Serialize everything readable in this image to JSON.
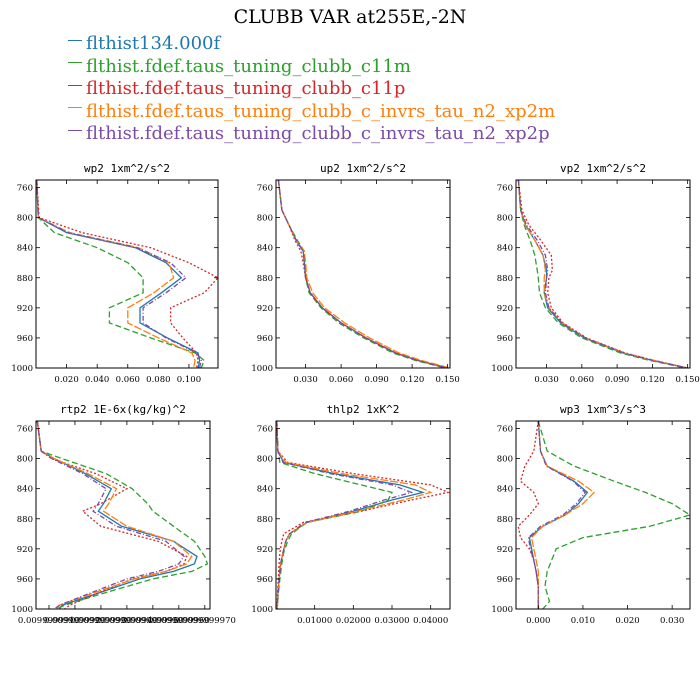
{
  "title": "CLUBB VAR at255E,-2N",
  "legend": [
    {
      "name": "flthist134.000f",
      "color": "#1f77b4"
    },
    {
      "name": "flthist.fdef.taus_tuning_clubb_c11m",
      "color": "#2ca02c"
    },
    {
      "name": "flthist.fdef.taus_tuning_clubb_c11p",
      "color": "#d62728"
    },
    {
      "name": "flthist.fdef.taus_tuning_clubb_c_invrs_tau_n2_xp2m",
      "color": "#ff7f0e"
    },
    {
      "name": "flthist.fdef.taus_tuning_clubb_c_invrs_tau_n2_xp2p",
      "color": "#7b4ba8"
    }
  ],
  "chart_data": [
    {
      "type": "line",
      "title": "wp2  1xm^2/s^2",
      "xlim": [
        0,
        0.119
      ],
      "ylim": [
        1000,
        750
      ],
      "xticks": [
        0.02,
        0.04,
        0.06,
        0.08,
        0.1
      ],
      "xtick_labels": [
        "0.020",
        "0.040",
        "0.060",
        "0.080",
        "0.100"
      ],
      "yticks": [
        760,
        800,
        840,
        880,
        920,
        960,
        1000
      ],
      "levels": [
        750,
        800,
        820,
        840,
        860,
        880,
        900,
        920,
        940,
        960,
        980,
        990,
        1000
      ],
      "series": [
        {
          "color": "#1f77b4",
          "values": [
            0.0005,
            0.0015,
            0.02,
            0.065,
            0.085,
            0.095,
            0.082,
            0.068,
            0.068,
            0.086,
            0.106,
            0.107,
            0.106
          ]
        },
        {
          "color": "#2ca02c",
          "values": [
            0.0005,
            0.0015,
            0.012,
            0.04,
            0.06,
            0.07,
            0.07,
            0.048,
            0.048,
            0.075,
            0.104,
            0.11,
            0.108
          ]
        },
        {
          "color": "#d62728",
          "values": [
            0.0005,
            0.002,
            0.03,
            0.075,
            0.1,
            0.119,
            0.11,
            0.088,
            0.088,
            0.096,
            0.105,
            0.106,
            0.105
          ]
        },
        {
          "color": "#ff7f0e",
          "values": [
            0.0005,
            0.0015,
            0.022,
            0.067,
            0.087,
            0.09,
            0.077,
            0.06,
            0.06,
            0.08,
            0.102,
            0.104,
            0.103
          ]
        },
        {
          "color": "#7b4ba8",
          "values": [
            0.0005,
            0.0015,
            0.021,
            0.066,
            0.088,
            0.098,
            0.085,
            0.07,
            0.07,
            0.085,
            0.105,
            0.108,
            0.107
          ]
        }
      ]
    },
    {
      "type": "line",
      "title": "up2  1xm^2/s^2",
      "xlim": [
        0.005,
        0.152
      ],
      "ylim": [
        1000,
        750
      ],
      "xticks": [
        0.03,
        0.06,
        0.09,
        0.12,
        0.15
      ],
      "xtick_labels": [
        "0.030",
        "0.060",
        "0.090",
        "0.120",
        "0.150"
      ],
      "yticks": [
        760,
        800,
        840,
        880,
        920,
        960,
        1000
      ],
      "levels": [
        750,
        790,
        810,
        830,
        845,
        860,
        880,
        900,
        920,
        940,
        960,
        980,
        990,
        1000
      ],
      "series": [
        {
          "color": "#1f77b4",
          "values": [
            0.007,
            0.01,
            0.016,
            0.022,
            0.028,
            0.029,
            0.03,
            0.034,
            0.044,
            0.06,
            0.081,
            0.106,
            0.125,
            0.15
          ]
        },
        {
          "color": "#2ca02c",
          "values": [
            0.007,
            0.01,
            0.016,
            0.023,
            0.029,
            0.029,
            0.03,
            0.033,
            0.043,
            0.058,
            0.079,
            0.104,
            0.123,
            0.148
          ]
        },
        {
          "color": "#d62728",
          "values": [
            0.007,
            0.01,
            0.016,
            0.021,
            0.026,
            0.028,
            0.03,
            0.034,
            0.044,
            0.06,
            0.081,
            0.106,
            0.125,
            0.15
          ]
        },
        {
          "color": "#ff7f0e",
          "values": [
            0.007,
            0.01,
            0.016,
            0.022,
            0.029,
            0.03,
            0.031,
            0.036,
            0.046,
            0.063,
            0.084,
            0.109,
            0.128,
            0.152
          ]
        },
        {
          "color": "#7b4ba8",
          "values": [
            0.007,
            0.01,
            0.016,
            0.022,
            0.028,
            0.029,
            0.03,
            0.034,
            0.044,
            0.06,
            0.081,
            0.106,
            0.125,
            0.15
          ]
        }
      ]
    },
    {
      "type": "line",
      "title": "vp2  1xm^2/s^2",
      "xlim": [
        0.004,
        0.152
      ],
      "ylim": [
        1000,
        750
      ],
      "xticks": [
        0.03,
        0.06,
        0.09,
        0.12,
        0.15
      ],
      "xtick_labels": [
        "0.030",
        "0.060",
        "0.090",
        "0.120",
        "0.150"
      ],
      "yticks": [
        760,
        800,
        840,
        880,
        920,
        960,
        1000
      ],
      "levels": [
        750,
        790,
        810,
        830,
        850,
        870,
        880,
        900,
        920,
        940,
        960,
        980,
        990,
        1000
      ],
      "series": [
        {
          "color": "#1f77b4",
          "values": [
            0.006,
            0.008,
            0.012,
            0.02,
            0.027,
            0.03,
            0.03,
            0.028,
            0.031,
            0.042,
            0.062,
            0.095,
            0.12,
            0.15
          ]
        },
        {
          "color": "#2ca02c",
          "values": [
            0.006,
            0.008,
            0.011,
            0.016,
            0.02,
            0.022,
            0.023,
            0.024,
            0.029,
            0.04,
            0.06,
            0.093,
            0.118,
            0.148
          ]
        },
        {
          "color": "#d62728",
          "values": [
            0.006,
            0.009,
            0.015,
            0.025,
            0.034,
            0.035,
            0.032,
            0.031,
            0.034,
            0.044,
            0.064,
            0.097,
            0.122,
            0.15
          ]
        },
        {
          "color": "#ff7f0e",
          "values": [
            0.006,
            0.008,
            0.012,
            0.02,
            0.027,
            0.029,
            0.028,
            0.028,
            0.032,
            0.043,
            0.063,
            0.096,
            0.121,
            0.15
          ]
        },
        {
          "color": "#7b4ba8",
          "values": [
            0.006,
            0.008,
            0.013,
            0.022,
            0.029,
            0.031,
            0.03,
            0.029,
            0.032,
            0.043,
            0.063,
            0.096,
            0.121,
            0.15
          ]
        }
      ]
    },
    {
      "type": "line",
      "title": "rtp2  1E-6x(kg/kg)^2",
      "xlim": [
        0.0099999905,
        0.0099999972
      ],
      "ylim": [
        1000,
        750
      ],
      "xticks": [
        0.009999991,
        0.009999992,
        0.009999993,
        0.009999994,
        0.009999995,
        0.009999996,
        0.009999997
      ],
      "xtick_labels": [
        "0.0099999910",
        "0.0099999920",
        "0.0099999930",
        "0.0099999940",
        "0.0099999950",
        "0.0099999960",
        "0.0099999970"
      ],
      "yticks": [
        760,
        800,
        840,
        880,
        920,
        960,
        1000
      ],
      "levels": [
        750,
        790,
        800,
        820,
        840,
        860,
        870,
        890,
        910,
        930,
        940,
        950,
        960,
        980,
        995,
        1000
      ],
      "series": [
        {
          "color": "#1f77b4",
          "values": [
            0.00999999055,
            0.0099999907,
            0.0099999912,
            0.0099999924,
            0.0099999934,
            0.0099999931,
            0.0099999929,
            0.0099999938,
            0.0099999958,
            0.0099999967,
            0.0099999966,
            0.0099999958,
            0.0099999945,
            0.0099999928,
            0.0099999915,
            0.0099999914
          ]
        },
        {
          "color": "#2ca02c",
          "values": [
            0.00999999055,
            0.0099999907,
            0.0099999915,
            0.0099999932,
            0.0099999942,
            0.0099999948,
            0.009999995,
            0.0099999958,
            0.0099999966,
            0.009999997,
            0.0099999971,
            0.0099999965,
            0.009999995,
            0.009999993,
            0.0099999916,
            0.0099999913
          ]
        },
        {
          "color": "#d62728",
          "values": [
            0.00999999055,
            0.0099999907,
            0.0099999911,
            0.0099999928,
            0.009999994,
            0.009999993,
            0.0099999923,
            0.009999993,
            0.0099999952,
            0.0099999963,
            0.0099999962,
            0.0099999955,
            0.0099999942,
            0.0099999928,
            0.0099999918,
            0.0099999916
          ]
        },
        {
          "color": "#ff7f0e",
          "values": [
            0.00999999055,
            0.0099999907,
            0.0099999912,
            0.0099999925,
            0.0099999936,
            0.0099999933,
            0.0099999931,
            0.009999994,
            0.0099999958,
            0.0099999965,
            0.0099999963,
            0.0099999955,
            0.0099999943,
            0.0099999926,
            0.0099999914,
            0.0099999913
          ]
        },
        {
          "color": "#7b4ba8",
          "values": [
            0.00999999055,
            0.0099999907,
            0.0099999911,
            0.0099999923,
            0.0099999932,
            0.0099999929,
            0.0099999927,
            0.0099999936,
            0.0099999955,
            0.0099999962,
            0.009999996,
            0.0099999952,
            0.009999994,
            0.0099999925,
            0.0099999914,
            0.0099999912
          ]
        }
      ]
    },
    {
      "type": "line",
      "title": "thlp2  1xK^2",
      "xlim": [
        0,
        0.045
      ],
      "ylim": [
        1000,
        750
      ],
      "xticks": [
        0.01,
        0.02,
        0.03,
        0.04
      ],
      "xtick_labels": [
        "0.01000",
        "0.02000",
        "0.03000",
        "0.04000"
      ],
      "yticks": [
        760,
        800,
        840,
        880,
        920,
        960,
        1000
      ],
      "levels": [
        750,
        790,
        805,
        820,
        835,
        845,
        855,
        870,
        885,
        900,
        910,
        925,
        940,
        960,
        980,
        1000
      ],
      "series": [
        {
          "color": "#1f77b4",
          "values": [
            0.0002,
            0.0005,
            0.002,
            0.015,
            0.032,
            0.038,
            0.03,
            0.02,
            0.008,
            0.0035,
            0.0025,
            0.0018,
            0.0012,
            0.0008,
            0.0005,
            0.0003
          ]
        },
        {
          "color": "#2ca02c",
          "values": [
            0.0002,
            0.0005,
            0.001,
            0.01,
            0.022,
            0.03,
            0.029,
            0.022,
            0.008,
            0.004,
            0.003,
            0.002,
            0.0015,
            0.001,
            0.0006,
            0.0003
          ]
        },
        {
          "color": "#d62728",
          "values": [
            0.0002,
            0.0005,
            0.003,
            0.02,
            0.04,
            0.0445,
            0.035,
            0.022,
            0.007,
            0.002,
            0.0015,
            0.001,
            0.0008,
            0.0006,
            0.0004,
            0.0003
          ]
        },
        {
          "color": "#ff7f0e",
          "values": [
            0.0002,
            0.0005,
            0.0025,
            0.017,
            0.036,
            0.04,
            0.033,
            0.021,
            0.008,
            0.0035,
            0.0025,
            0.0018,
            0.0012,
            0.0008,
            0.0005,
            0.0003
          ]
        },
        {
          "color": "#7b4ba8",
          "values": [
            0.0002,
            0.0005,
            0.0018,
            0.014,
            0.03,
            0.035,
            0.028,
            0.019,
            0.0075,
            0.0035,
            0.0025,
            0.0018,
            0.0012,
            0.0008,
            0.0005,
            0.0003
          ]
        }
      ]
    },
    {
      "type": "line",
      "title": "wp3  1xm^3/s^3",
      "xlim": [
        -0.005,
        0.034
      ],
      "ylim": [
        1000,
        750
      ],
      "xticks": [
        0.0,
        0.01,
        0.02,
        0.03
      ],
      "xtick_labels": [
        "0.000",
        "0.010",
        "0.020",
        "0.030"
      ],
      "yticks": [
        760,
        800,
        840,
        880,
        920,
        960,
        1000
      ],
      "levels": [
        750,
        790,
        810,
        830,
        845,
        860,
        875,
        890,
        905,
        920,
        935,
        950,
        970,
        990,
        1000
      ],
      "series": [
        {
          "color": "#1f77b4",
          "values": [
            0.0,
            0.0005,
            0.002,
            0.008,
            0.011,
            0.009,
            0.006,
            0.001,
            -0.002,
            -0.0015,
            -0.001,
            -0.0005,
            0.0,
            0.0,
            0.0
          ]
        },
        {
          "color": "#2ca02c",
          "values": [
            0.0,
            0.002,
            0.008,
            0.017,
            0.024,
            0.03,
            0.034,
            0.025,
            0.01,
            0.004,
            0.003,
            0.002,
            0.0015,
            0.0025,
            0.001
          ]
        },
        {
          "color": "#d62728",
          "values": [
            0.0,
            -0.001,
            -0.003,
            -0.004,
            -0.001,
            0.0,
            -0.002,
            -0.0045,
            -0.004,
            -0.002,
            -0.001,
            -0.0005,
            0.0,
            0.0,
            0.0
          ]
        },
        {
          "color": "#ff7f0e",
          "values": [
            0.0,
            0.0005,
            0.002,
            0.009,
            0.0125,
            0.01,
            0.006,
            0.001,
            -0.0015,
            -0.001,
            -0.0005,
            0.0,
            0.0,
            0.0,
            0.0
          ]
        },
        {
          "color": "#7b4ba8",
          "values": [
            0.0,
            0.0005,
            0.0018,
            0.0078,
            0.0105,
            0.0085,
            0.0055,
            0.0005,
            -0.0022,
            -0.0018,
            -0.001,
            -0.0005,
            0.0,
            0.0,
            0.0
          ]
        }
      ]
    }
  ]
}
